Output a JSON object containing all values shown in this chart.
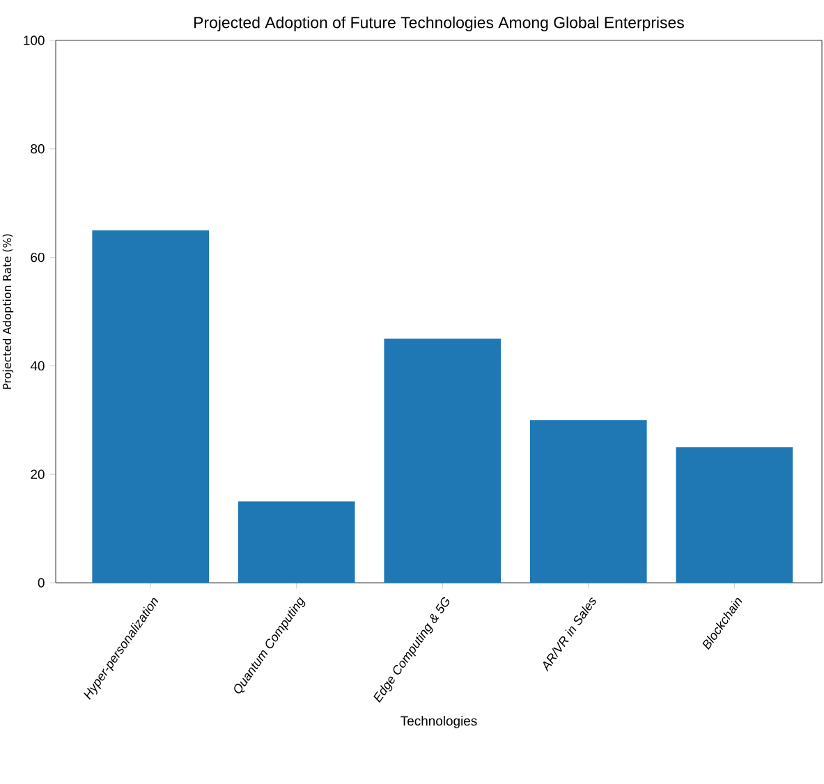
{
  "chart_data": {
    "type": "bar",
    "title": "Projected Adoption of Future Technologies Among Global Enterprises",
    "xlabel": "Technologies",
    "ylabel": "Projected Adoption Rate (%)",
    "categories": [
      "Hyper-personalization",
      "Quantum Computing",
      "Edge Computing & 5G",
      "AR/VR in Sales",
      "Blockchain"
    ],
    "values": [
      65,
      15,
      45,
      30,
      25
    ],
    "color": "#1f77b4",
    "ylim": [
      0,
      100
    ],
    "yticks": [
      0,
      20,
      40,
      60,
      80,
      100
    ]
  }
}
